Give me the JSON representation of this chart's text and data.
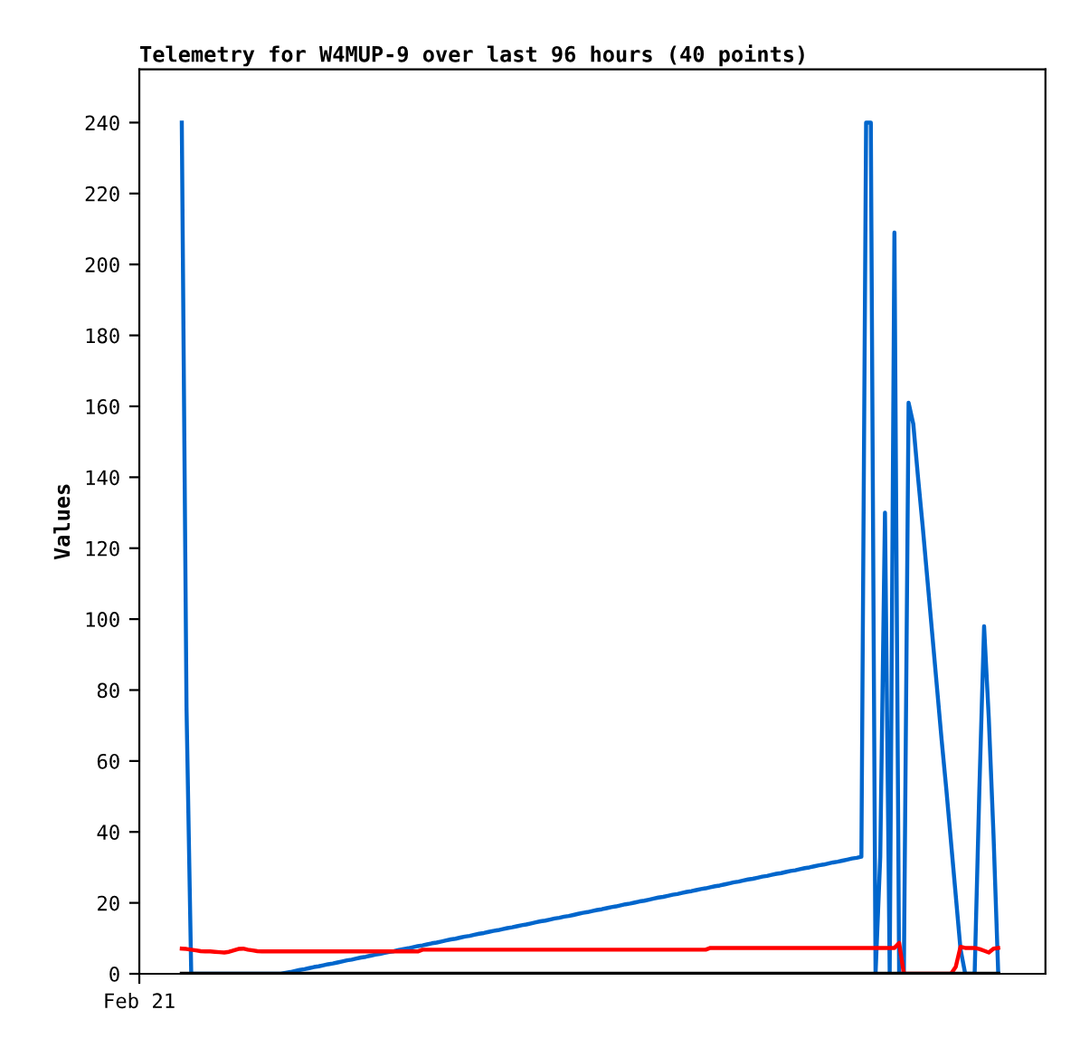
{
  "chart_data": {
    "type": "line",
    "title": "Telemetry for W4MUP-9 over last 96 hours (40 points)",
    "ylabel": "Values",
    "categories": [
      "Feb 21",
      null,
      null,
      null,
      null,
      null,
      null,
      null,
      null,
      null,
      null,
      null,
      null,
      null,
      null,
      null,
      null,
      null,
      null,
      null,
      null,
      null,
      null,
      null,
      null,
      null,
      null,
      null,
      null,
      null,
      null,
      null,
      null,
      null,
      null,
      null,
      null,
      null,
      null,
      null,
      null,
      null,
      null,
      null,
      null,
      null,
      null,
      null,
      null,
      null,
      null,
      null,
      null,
      null,
      null,
      null,
      null,
      null,
      null,
      null,
      null,
      null,
      null,
      null,
      null,
      null,
      null,
      null,
      null,
      null,
      null,
      null,
      null,
      null,
      null,
      null,
      null,
      null,
      null,
      null,
      null,
      null,
      null,
      null,
      null,
      null,
      null,
      null,
      null,
      null,
      null,
      null,
      null,
      null,
      null,
      null,
      null,
      null,
      null,
      null,
      null,
      null,
      null,
      null,
      null,
      null,
      null,
      null,
      null,
      null,
      null,
      null,
      null,
      null,
      null,
      null,
      null,
      null,
      null,
      null,
      null,
      null,
      null,
      null,
      null,
      null,
      null,
      null,
      null,
      null,
      null,
      null,
      null,
      null,
      null,
      null,
      null,
      null,
      null,
      null,
      null,
      null,
      null,
      null,
      null,
      null,
      null,
      null,
      null,
      null,
      null,
      null,
      null,
      null,
      null,
      null,
      null,
      null,
      null,
      null,
      null,
      null,
      null,
      null,
      null,
      null,
      null,
      null,
      null,
      null,
      null,
      null,
      null,
      null,
      null,
      null,
      null,
      null,
      null,
      null,
      null,
      null,
      null,
      null,
      null,
      null,
      null,
      null,
      null,
      null,
      null,
      null,
      null
    ],
    "ylim": [
      0,
      255
    ],
    "yticks": [
      0,
      20,
      40,
      60,
      80,
      100,
      120,
      140,
      160,
      180,
      200,
      220,
      240
    ],
    "grid": false,
    "legend": false,
    "marker": "none",
    "line_style": "solid",
    "series": [
      {
        "color": "#0066cc",
        "values": [
          null,
          null,
          null,
          null,
          null,
          null,
          null,
          null,
          null,
          240,
          75,
          0,
          0,
          0,
          0,
          0,
          0,
          0,
          0,
          0,
          0,
          0,
          0,
          0,
          0,
          0,
          0,
          0,
          0,
          0,
          0,
          0.3,
          0.5,
          0.8,
          1.1,
          1.3,
          1.6,
          1.9,
          2.1,
          2.4,
          2.7,
          2.9,
          3.2,
          3.5,
          3.8,
          4.0,
          4.3,
          4.6,
          4.8,
          5.1,
          5.4,
          5.6,
          5.9,
          6.2,
          6.4,
          6.7,
          7.0,
          7.2,
          7.5,
          7.8,
          8.0,
          8.3,
          8.6,
          8.8,
          9.1,
          9.4,
          9.7,
          9.9,
          10.2,
          10.5,
          10.7,
          11.0,
          11.3,
          11.5,
          11.8,
          12.1,
          12.3,
          12.6,
          12.9,
          13.1,
          13.4,
          13.7,
          13.9,
          14.2,
          14.5,
          14.8,
          15.0,
          15.3,
          15.6,
          15.8,
          16.1,
          16.3,
          16.6,
          16.9,
          17.2,
          17.4,
          17.7,
          18.0,
          18.2,
          18.5,
          18.8,
          19.0,
          19.3,
          19.6,
          19.8,
          20.1,
          20.4,
          20.6,
          20.9,
          21.2,
          21.5,
          21.7,
          22.0,
          22.3,
          22.5,
          22.8,
          23.1,
          23.3,
          23.6,
          23.9,
          24.1,
          24.4,
          24.7,
          24.9,
          25.2,
          25.5,
          25.8,
          26.0,
          26.3,
          26.6,
          26.8,
          27.1,
          27.4,
          27.6,
          27.9,
          28.2,
          28.4,
          28.7,
          29.0,
          29.2,
          29.5,
          29.8,
          30.0,
          30.3,
          30.6,
          30.8,
          31.1,
          31.4,
          31.6,
          31.9,
          32.2,
          32.5,
          32.7,
          33,
          240,
          240,
          0,
          33,
          130,
          0,
          209,
          0,
          0,
          161,
          155,
          140,
          126,
          111,
          96,
          81,
          66,
          52,
          37,
          22,
          7,
          0,
          0,
          0,
          52,
          98,
          72,
          39,
          0,
          null,
          null,
          null,
          null,
          null,
          null,
          null,
          null,
          null,
          null
        ]
      },
      {
        "color": "#ff0000",
        "values": [
          null,
          null,
          null,
          null,
          null,
          null,
          null,
          null,
          null,
          7.1,
          7.0,
          6.8,
          6.6,
          6.4,
          6.3,
          6.3,
          6.2,
          6.1,
          6.0,
          6.2,
          6.6,
          7.0,
          7.1,
          6.8,
          6.6,
          6.4,
          6.3,
          6.3,
          6.3,
          6.3,
          6.3,
          6.3,
          6.3,
          6.3,
          6.3,
          6.3,
          6.3,
          6.3,
          6.3,
          6.3,
          6.3,
          6.3,
          6.3,
          6.3,
          6.3,
          6.3,
          6.3,
          6.3,
          6.3,
          6.3,
          6.3,
          6.3,
          6.3,
          6.3,
          6.3,
          6.3,
          6.3,
          6.3,
          6.3,
          6.3,
          6.8,
          6.8,
          6.8,
          6.8,
          6.8,
          6.8,
          6.8,
          6.8,
          6.8,
          6.8,
          6.8,
          6.8,
          6.8,
          6.8,
          6.8,
          6.8,
          6.8,
          6.8,
          6.8,
          6.8,
          6.8,
          6.8,
          6.8,
          6.8,
          6.8,
          6.8,
          6.8,
          6.8,
          6.8,
          6.8,
          6.8,
          6.8,
          6.8,
          6.8,
          6.8,
          6.8,
          6.8,
          6.8,
          6.8,
          6.8,
          6.8,
          6.8,
          6.8,
          6.8,
          6.8,
          6.8,
          6.8,
          6.8,
          6.8,
          6.8,
          6.8,
          6.8,
          6.8,
          6.8,
          6.8,
          6.8,
          6.8,
          6.8,
          6.8,
          6.8,
          6.8,
          7.3,
          7.3,
          7.3,
          7.3,
          7.3,
          7.3,
          7.3,
          7.3,
          7.3,
          7.3,
          7.3,
          7.3,
          7.3,
          7.3,
          7.3,
          7.3,
          7.3,
          7.3,
          7.3,
          7.3,
          7.3,
          7.3,
          7.3,
          7.3,
          7.3,
          7.3,
          7.3,
          7.3,
          7.3,
          7.3,
          7.3,
          7.3,
          7.3,
          7.3,
          7.3,
          7.3,
          7.3,
          7.3,
          7.3,
          7.3,
          8.7,
          0,
          0,
          0,
          0,
          0,
          0,
          0,
          0,
          0,
          0,
          0,
          2,
          7.6,
          7.3,
          7.3,
          7.3,
          7.0,
          6.5,
          6.0,
          7.1,
          7.3,
          null,
          null,
          null,
          null,
          null,
          null,
          null,
          null,
          null,
          null
        ]
      },
      {
        "color": "#000000",
        "values": [
          null,
          null,
          null,
          null,
          null,
          null,
          null,
          null,
          null,
          0,
          0,
          0,
          0,
          0,
          0,
          0,
          0,
          0,
          0,
          0,
          0,
          0,
          0,
          0,
          0,
          0,
          0,
          0,
          0,
          0,
          0,
          0,
          0,
          0,
          0,
          0,
          0,
          0,
          0,
          0,
          0,
          0,
          0,
          0,
          0,
          0,
          0,
          0,
          0,
          0,
          0,
          0,
          0,
          0,
          0,
          0,
          0,
          0,
          0,
          0,
          0,
          0,
          0,
          0,
          0,
          0,
          0,
          0,
          0,
          0,
          0,
          0,
          0,
          0,
          0,
          0,
          0,
          0,
          0,
          0,
          0,
          0,
          0,
          0,
          0,
          0,
          0,
          0,
          0,
          0,
          0,
          0,
          0,
          0,
          0,
          0,
          0,
          0,
          0,
          0,
          0,
          0,
          0,
          0,
          0,
          0,
          0,
          0,
          0,
          0,
          0,
          0,
          0,
          0,
          0,
          0,
          0,
          0,
          0,
          0,
          0,
          0,
          0,
          0,
          0,
          0,
          0,
          0,
          0,
          0,
          0,
          0,
          0,
          0,
          0,
          0,
          0,
          0,
          0,
          0,
          0,
          0,
          0,
          0,
          0,
          0,
          0,
          0,
          0,
          0,
          0,
          0,
          0,
          0,
          0,
          0,
          0,
          0,
          0,
          0,
          0,
          0,
          0,
          0,
          0,
          0,
          0,
          0,
          0,
          0,
          0,
          0,
          0,
          0,
          0,
          0,
          0,
          0,
          0,
          0,
          0,
          0,
          0,
          null,
          null,
          null,
          null,
          null,
          null,
          null,
          null,
          null,
          null
        ]
      }
    ]
  }
}
